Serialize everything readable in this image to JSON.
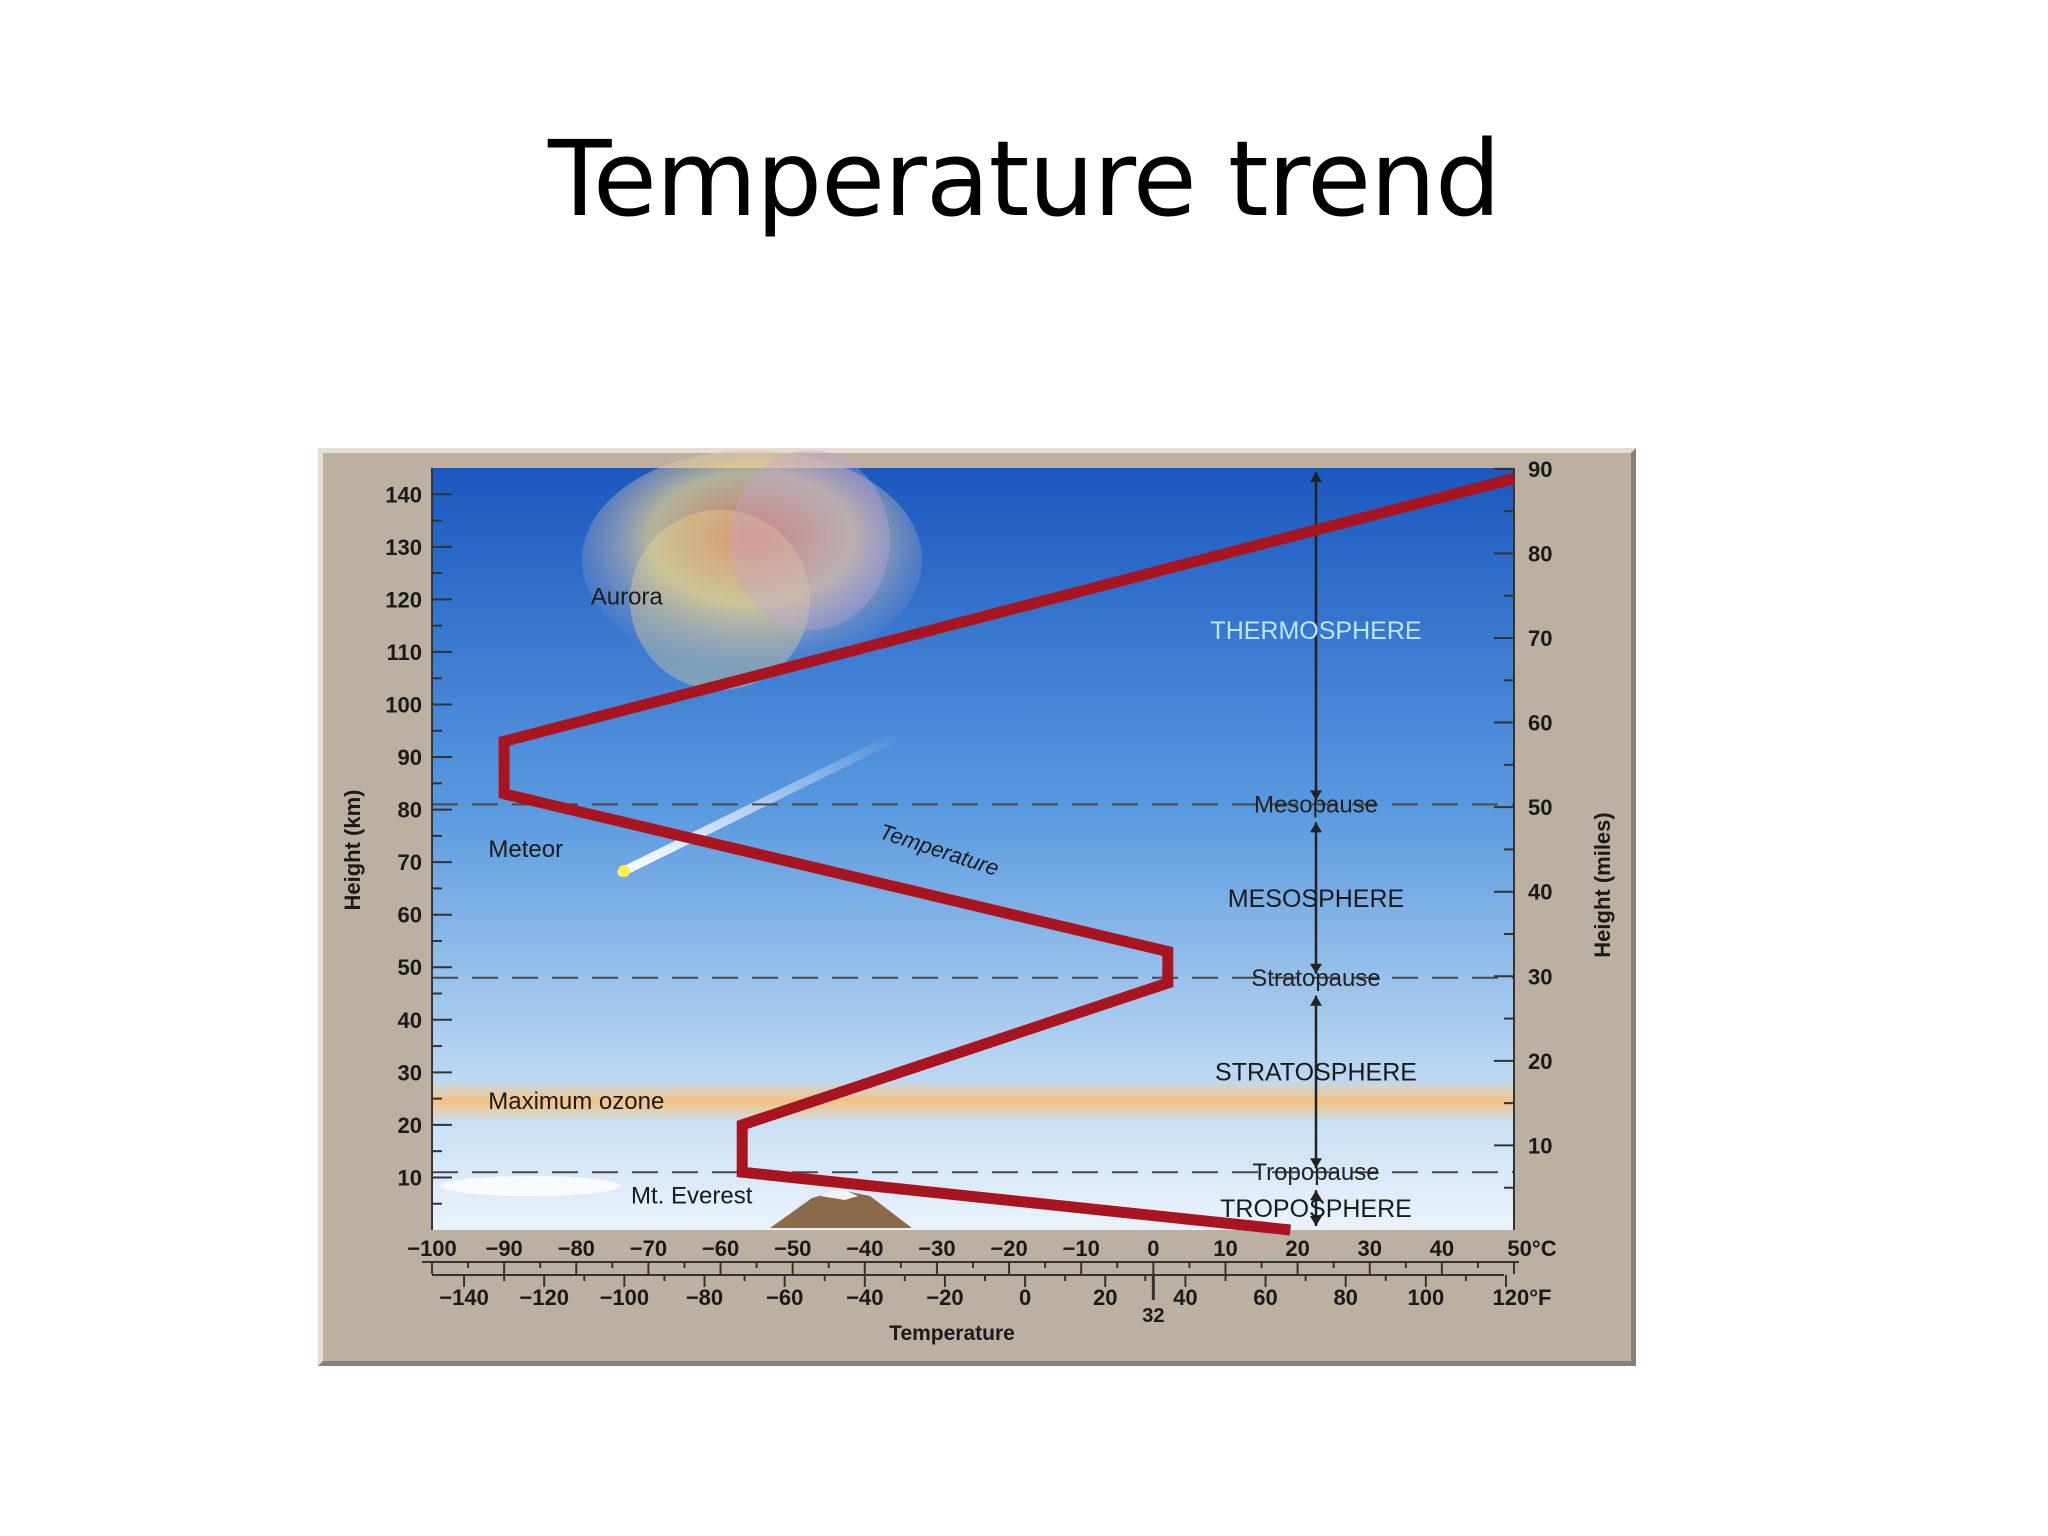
{
  "slide": {
    "title": "Temperature trend"
  },
  "colors": {
    "sky_top": "#1f63c4",
    "sky_bottom": "#e4f0fa",
    "curve": "#a81420",
    "frame": "#bcb0a2",
    "ozone": "#f7c98c",
    "layer_label": "#bfe6ff"
  },
  "chart_data": {
    "type": "line",
    "xlabel": "Temperature",
    "ylabel": "Height (km)",
    "y2label": "Height (miles)",
    "xlim": [
      -100,
      50
    ],
    "ylim": [
      0,
      145
    ],
    "x_unit": "°C",
    "x2_unit": "°F",
    "x_ticks": [
      {
        "v": -100,
        "label": "−100"
      },
      {
        "v": -90,
        "label": "−90"
      },
      {
        "v": -80,
        "label": "−80"
      },
      {
        "v": -70,
        "label": "−70"
      },
      {
        "v": -60,
        "label": "−60"
      },
      {
        "v": -50,
        "label": "−50"
      },
      {
        "v": -40,
        "label": "−40"
      },
      {
        "v": -30,
        "label": "−30"
      },
      {
        "v": -20,
        "label": "−20"
      },
      {
        "v": -10,
        "label": "−10"
      },
      {
        "v": 0,
        "label": "0"
      },
      {
        "v": 10,
        "label": "10"
      },
      {
        "v": 20,
        "label": "20"
      },
      {
        "v": 30,
        "label": "30"
      },
      {
        "v": 40,
        "label": "40"
      },
      {
        "v": 50,
        "label": "50°C"
      }
    ],
    "x2_ticks": [
      {
        "v": -140,
        "label": "−140"
      },
      {
        "v": -120,
        "label": "−120"
      },
      {
        "v": -100,
        "label": "−100"
      },
      {
        "v": -80,
        "label": "−80"
      },
      {
        "v": -60,
        "label": "−60"
      },
      {
        "v": -40,
        "label": "−40"
      },
      {
        "v": -20,
        "label": "−20"
      },
      {
        "v": 0,
        "label": "0"
      },
      {
        "v": 20,
        "label": "20"
      },
      {
        "v": 40,
        "label": "40"
      },
      {
        "v": 60,
        "label": "60"
      },
      {
        "v": 80,
        "label": "80"
      },
      {
        "v": 100,
        "label": "100"
      },
      {
        "v": 120,
        "label": "120°F"
      }
    ],
    "freezing_label": "32",
    "y_ticks": [
      10,
      20,
      30,
      40,
      50,
      60,
      70,
      80,
      90,
      100,
      110,
      120,
      130,
      140
    ],
    "y2_ticks": [
      10,
      20,
      30,
      40,
      50,
      60,
      70,
      80,
      90
    ],
    "series": [
      {
        "name": "Temperature",
        "points": [
          [
            19,
            0
          ],
          [
            -57,
            11
          ],
          [
            -57,
            20
          ],
          [
            2,
            47
          ],
          [
            2,
            53
          ],
          [
            -90,
            83
          ],
          [
            -90,
            93
          ],
          [
            50,
            143
          ]
        ]
      }
    ],
    "boundaries": [
      {
        "height": 11,
        "label": "Tropopause"
      },
      {
        "height": 48,
        "label": "Stratopause"
      },
      {
        "height": 81,
        "label": "Mesopause"
      }
    ],
    "layers": [
      {
        "label": "TROPOSPHERE",
        "height": 4
      },
      {
        "label": "STRATOSPHERE",
        "height": 30
      },
      {
        "label": "MESOSPHERE",
        "height": 63
      },
      {
        "label": "THERMOSPHERE",
        "height": 114
      }
    ],
    "ozone_band": {
      "from": 21,
      "to": 28,
      "label": "Maximum ozone"
    },
    "annotations": [
      {
        "text": "Aurora",
        "x": -73,
        "y": 119
      },
      {
        "text": "Meteor",
        "x": -87,
        "y": 71
      },
      {
        "text": "Mt. Everest",
        "x": -64,
        "y": 5
      },
      {
        "text": "Temperature",
        "x": -30,
        "y": 71
      }
    ],
    "grid": false
  }
}
